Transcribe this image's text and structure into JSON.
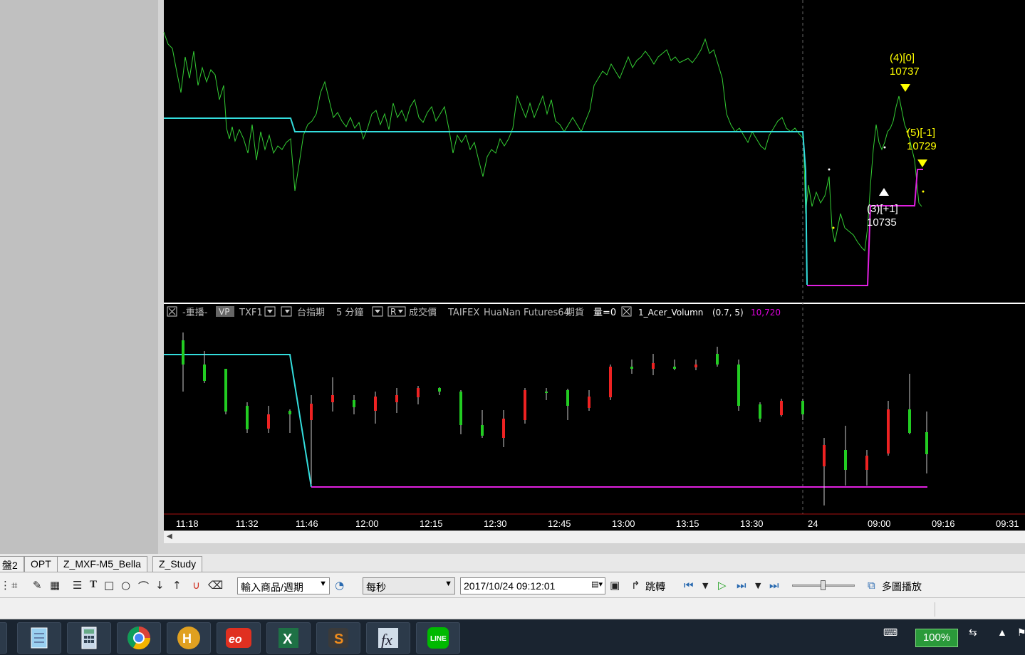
{
  "markers": [
    {
      "label": "(4)[0]",
      "price": "10737",
      "type": "sell",
      "color": "#ffff00"
    },
    {
      "label": "(5)[-1]",
      "price": "10729",
      "type": "sell",
      "color": "#ffff00"
    },
    {
      "label": "(3)[+1]",
      "price": "10735",
      "type": "buy",
      "color": "#ffffff"
    }
  ],
  "header": {
    "close_box": "☒",
    "replay": "-重播-",
    "vp": "VP",
    "symbol": "TXF1",
    "symbol_name": "台指期",
    "period": "5 分鐘",
    "r_label": "R",
    "price_type": "成交價",
    "exchange": "TAIFEX",
    "broker": "HuaNan Futures64",
    "market": "期貨",
    "volume": "量=0",
    "indicator": "1_Acer_Volumn",
    "params": "(0.7,  5)",
    "value": "10,720",
    "value_color": "#e000e0"
  },
  "x_labels": [
    "11:18",
    "11:32",
    "11:46",
    "12:00",
    "12:15",
    "12:30",
    "12:45",
    "13:00",
    "13:15",
    "13:30",
    "24",
    "09:00",
    "09:16",
    "09:31"
  ],
  "tabs": [
    "盤2",
    "OPT",
    "Z_MXF-M5_Bella",
    "Z_Study"
  ],
  "toolbar": {
    "symbol_input": "輸入商品/週期",
    "speed": "每秒",
    "datetime": "2017/10/24 09:12:01",
    "jump": "跳轉",
    "multi_play": "多圖播放",
    "text_tool": "T"
  },
  "tray": {
    "battery": "100%"
  },
  "colors": {
    "price_line": "#33cc33",
    "cyan_line": "#33dddd",
    "magenta_line": "#e020e0",
    "up_candle": "#ee2222",
    "down_candle": "#22cc22"
  }
}
